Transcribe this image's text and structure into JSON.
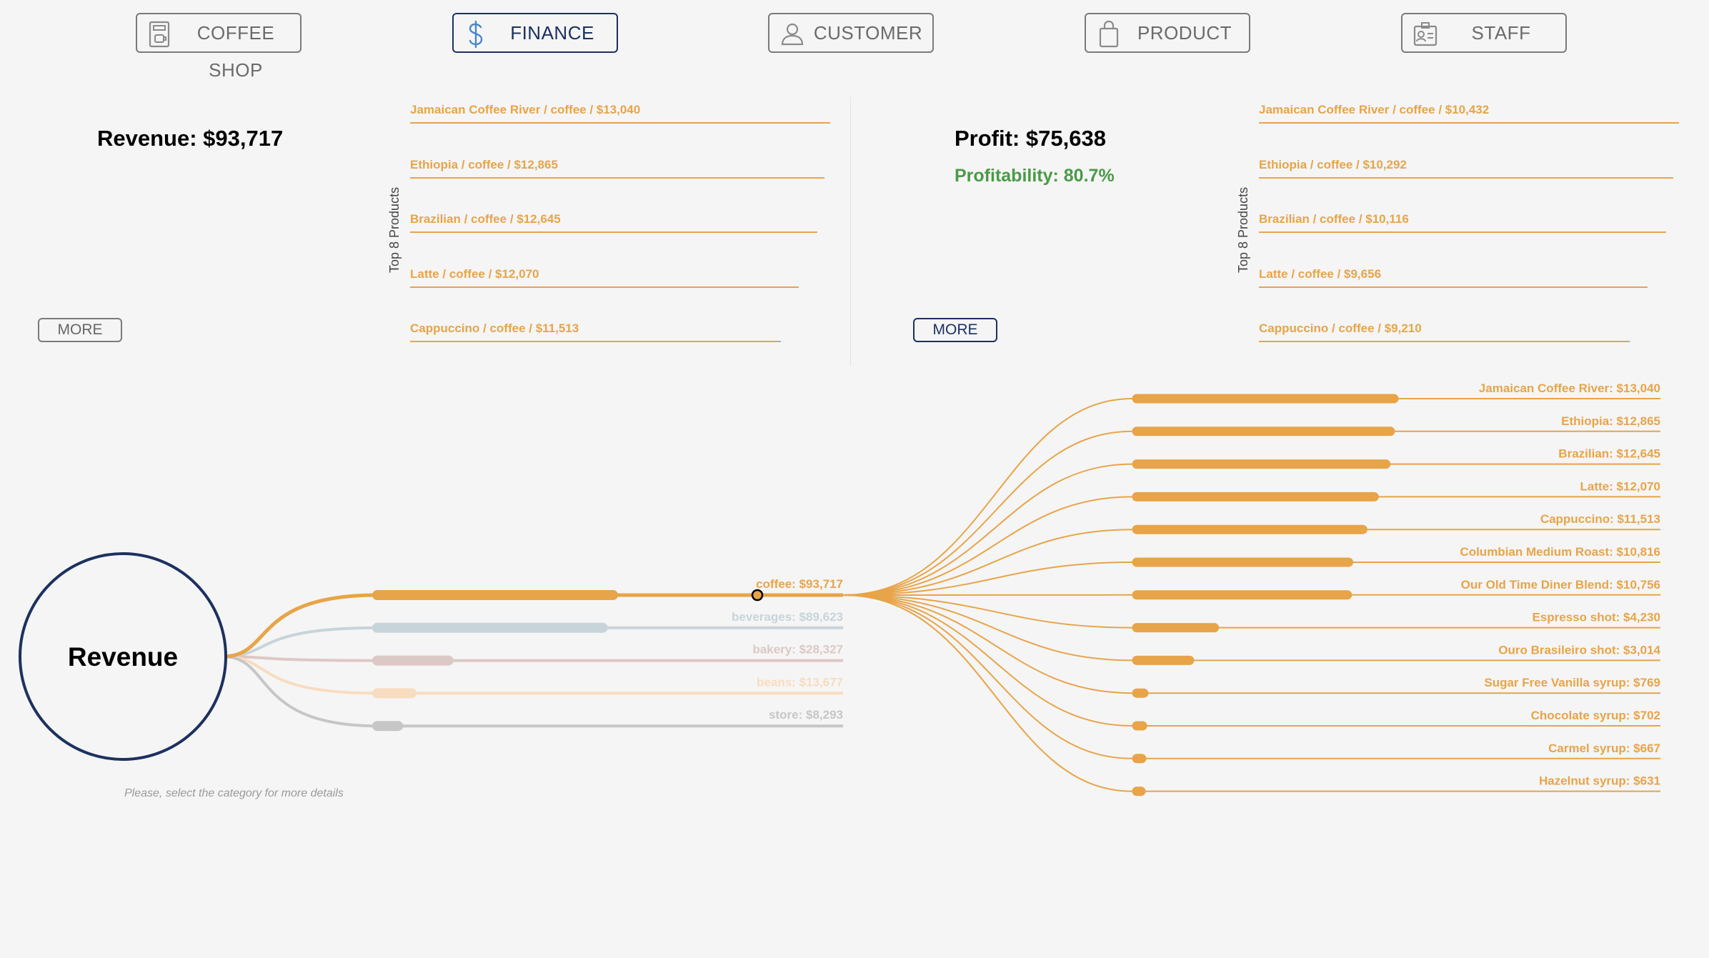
{
  "nav": {
    "tabs": [
      {
        "label": "COFFEE SHOP",
        "icon": "coffee-machine-icon",
        "active": false
      },
      {
        "label": "FINANCE",
        "icon": "dollar-icon",
        "active": true
      },
      {
        "label": "CUSTOMER",
        "icon": "person-icon",
        "active": false
      },
      {
        "label": "PRODUCT",
        "icon": "shopping-bag-icon",
        "active": false
      },
      {
        "label": "STAFF",
        "icon": "id-badge-icon",
        "active": false
      }
    ]
  },
  "revenue_panel": {
    "title": "Revenue: $93,717",
    "more_label": "MORE",
    "side_label": "Top 8 Products",
    "top_products": [
      {
        "text": "Jamaican Coffee River / coffee / $13,040",
        "value": 13040
      },
      {
        "text": "Ethiopia / coffee / $12,865",
        "value": 12865
      },
      {
        "text": "Brazilian / coffee / $12,645",
        "value": 12645
      },
      {
        "text": "Latte / coffee / $12,070",
        "value": 12070
      },
      {
        "text": "Cappuccino / coffee / $11,513",
        "value": 11513
      }
    ]
  },
  "profit_panel": {
    "title": "Profit: $75,638",
    "profitability": "Profitability: 80.7%",
    "more_label": "MORE",
    "side_label": "Top 8 Products",
    "top_products": [
      {
        "text": "Jamaican Coffee River / coffee / $10,432",
        "value": 10432
      },
      {
        "text": "Ethiopia / coffee / $10,292",
        "value": 10292
      },
      {
        "text": "Brazilian / coffee / $10,116",
        "value": 10116
      },
      {
        "text": "Latte / coffee / $9,656",
        "value": 9656
      },
      {
        "text": "Cappuccino / coffee / $9,210",
        "value": 9210
      }
    ]
  },
  "tree": {
    "root_label": "Revenue",
    "hint": "Please, select the category for more details",
    "categories": [
      {
        "label": "coffee: $93,717",
        "value": 93717,
        "color": "#e8a448",
        "selected": true
      },
      {
        "label": "beverages: $89,623",
        "value": 89623,
        "color": "#c7d4da",
        "selected": false
      },
      {
        "label": "bakery: $28,327",
        "value": 28327,
        "color": "#dcc8c5",
        "selected": false
      },
      {
        "label": "beans: $13,677",
        "value": 13677,
        "color": "#f8dcc0",
        "selected": false
      },
      {
        "label": "store: $8,293",
        "value": 8293,
        "color": "#c6c6c6",
        "selected": false
      }
    ],
    "products": [
      {
        "label": "Jamaican Coffee River: $13,040",
        "value": 13040
      },
      {
        "label": "Ethiopia: $12,865",
        "value": 12865
      },
      {
        "label": "Brazilian: $12,645",
        "value": 12645
      },
      {
        "label": "Latte: $12,070",
        "value": 12070
      },
      {
        "label": "Cappuccino: $11,513",
        "value": 11513
      },
      {
        "label": "Columbian Medium Roast: $10,816",
        "value": 10816
      },
      {
        "label": "Our Old Time Diner Blend: $10,756",
        "value": 10756
      },
      {
        "label": "Espresso shot: $4,230",
        "value": 4230
      },
      {
        "label": "Ouro Brasileiro shot: $3,014",
        "value": 3014
      },
      {
        "label": "Sugar Free Vanilla syrup: $769",
        "value": 769
      },
      {
        "label": "Chocolate syrup: $702",
        "value": 702
      },
      {
        "label": "Carmel syrup: $667",
        "value": 667
      },
      {
        "label": "Hazelnut syrup: $631",
        "value": 631
      }
    ]
  }
}
